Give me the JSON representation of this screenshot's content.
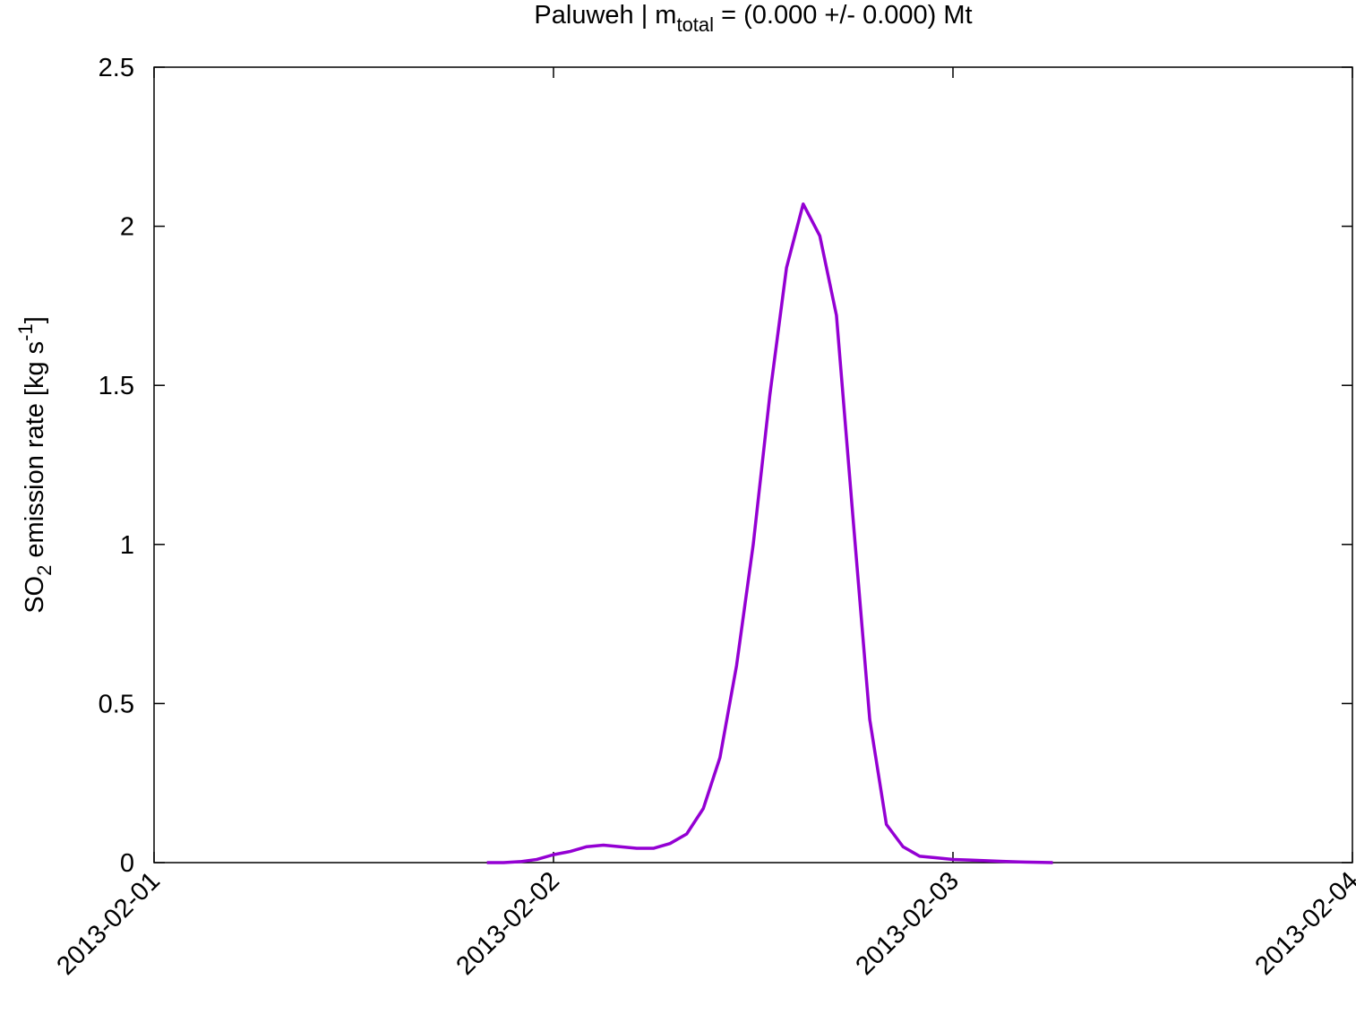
{
  "chart_data": {
    "type": "line",
    "title": [
      "Paluweh | m",
      "total",
      " = (0.000 +/- 0.000) Mt"
    ],
    "y_label": [
      "SO",
      "2",
      " emission rate [kg s",
      "-1",
      "]"
    ],
    "xlim": [
      "2013-02-01",
      "2013-02-04"
    ],
    "xticks": [
      "2013-02-01",
      "2013-02-02",
      "2013-02-03",
      "2013-02-04"
    ],
    "ylim": [
      0,
      2.5
    ],
    "yticks": [
      0,
      0.5,
      1,
      1.5,
      2,
      2.5
    ],
    "x": [
      "2013-02-01T20:00",
      "2013-02-01T21:00",
      "2013-02-01T22:00",
      "2013-02-01T23:00",
      "2013-02-02T00:00",
      "2013-02-02T01:00",
      "2013-02-02T02:00",
      "2013-02-02T03:00",
      "2013-02-02T04:00",
      "2013-02-02T05:00",
      "2013-02-02T06:00",
      "2013-02-02T07:00",
      "2013-02-02T08:00",
      "2013-02-02T09:00",
      "2013-02-02T10:00",
      "2013-02-02T11:00",
      "2013-02-02T12:00",
      "2013-02-02T13:00",
      "2013-02-02T14:00",
      "2013-02-02T15:00",
      "2013-02-02T16:00",
      "2013-02-02T17:00",
      "2013-02-02T18:00",
      "2013-02-02T19:00",
      "2013-02-02T20:00",
      "2013-02-02T21:00",
      "2013-02-02T22:00",
      "2013-02-02T23:00",
      "2013-02-03T00:00",
      "2013-02-03T01:00",
      "2013-02-03T02:00",
      "2013-02-03T03:00",
      "2013-02-03T04:00",
      "2013-02-03T05:00",
      "2013-02-03T06:00"
    ],
    "series": [
      {
        "color": "#9400d3",
        "values": [
          0,
          0,
          0.003,
          0.01,
          0.025,
          0.035,
          0.05,
          0.055,
          0.05,
          0.045,
          0.045,
          0.06,
          0.09,
          0.17,
          0.33,
          0.62,
          1.0,
          1.47,
          1.87,
          2.07,
          1.97,
          1.72,
          1.08,
          0.45,
          0.12,
          0.05,
          0.02,
          0.015,
          0.01,
          0.008,
          0.006,
          0.004,
          0.002,
          0.001,
          0
        ]
      }
    ]
  }
}
